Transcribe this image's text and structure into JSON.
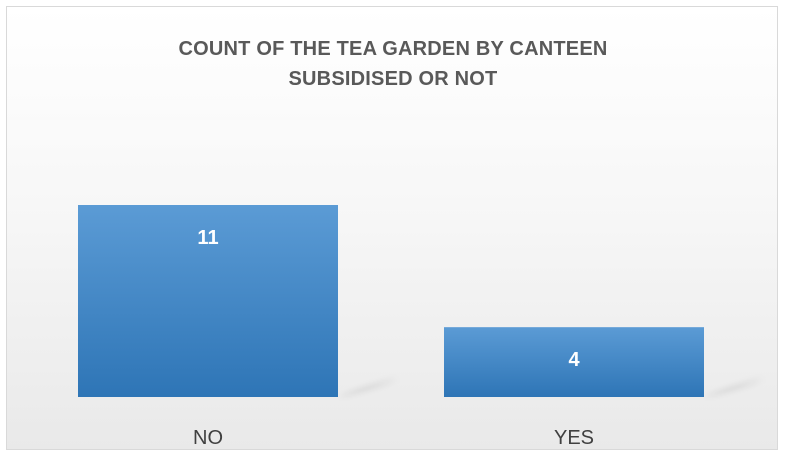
{
  "chart_data": {
    "type": "bar",
    "title_lines": [
      "COUNT OF THE TEA GARDEN BY CANTEEN",
      "SUBSIDISED OR NOT"
    ],
    "categories": [
      "NO",
      "YES"
    ],
    "values": [
      11,
      4
    ],
    "data_labels": [
      "11",
      "4"
    ],
    "xlabel": "",
    "ylabel": "",
    "ylim": [
      0,
      12
    ],
    "grid": false,
    "legend": "none",
    "bar_color_top": "#5b9bd5",
    "bar_color_bottom": "#2e75b6",
    "label_color": "#ffffff",
    "category_label_color": "#404040"
  }
}
